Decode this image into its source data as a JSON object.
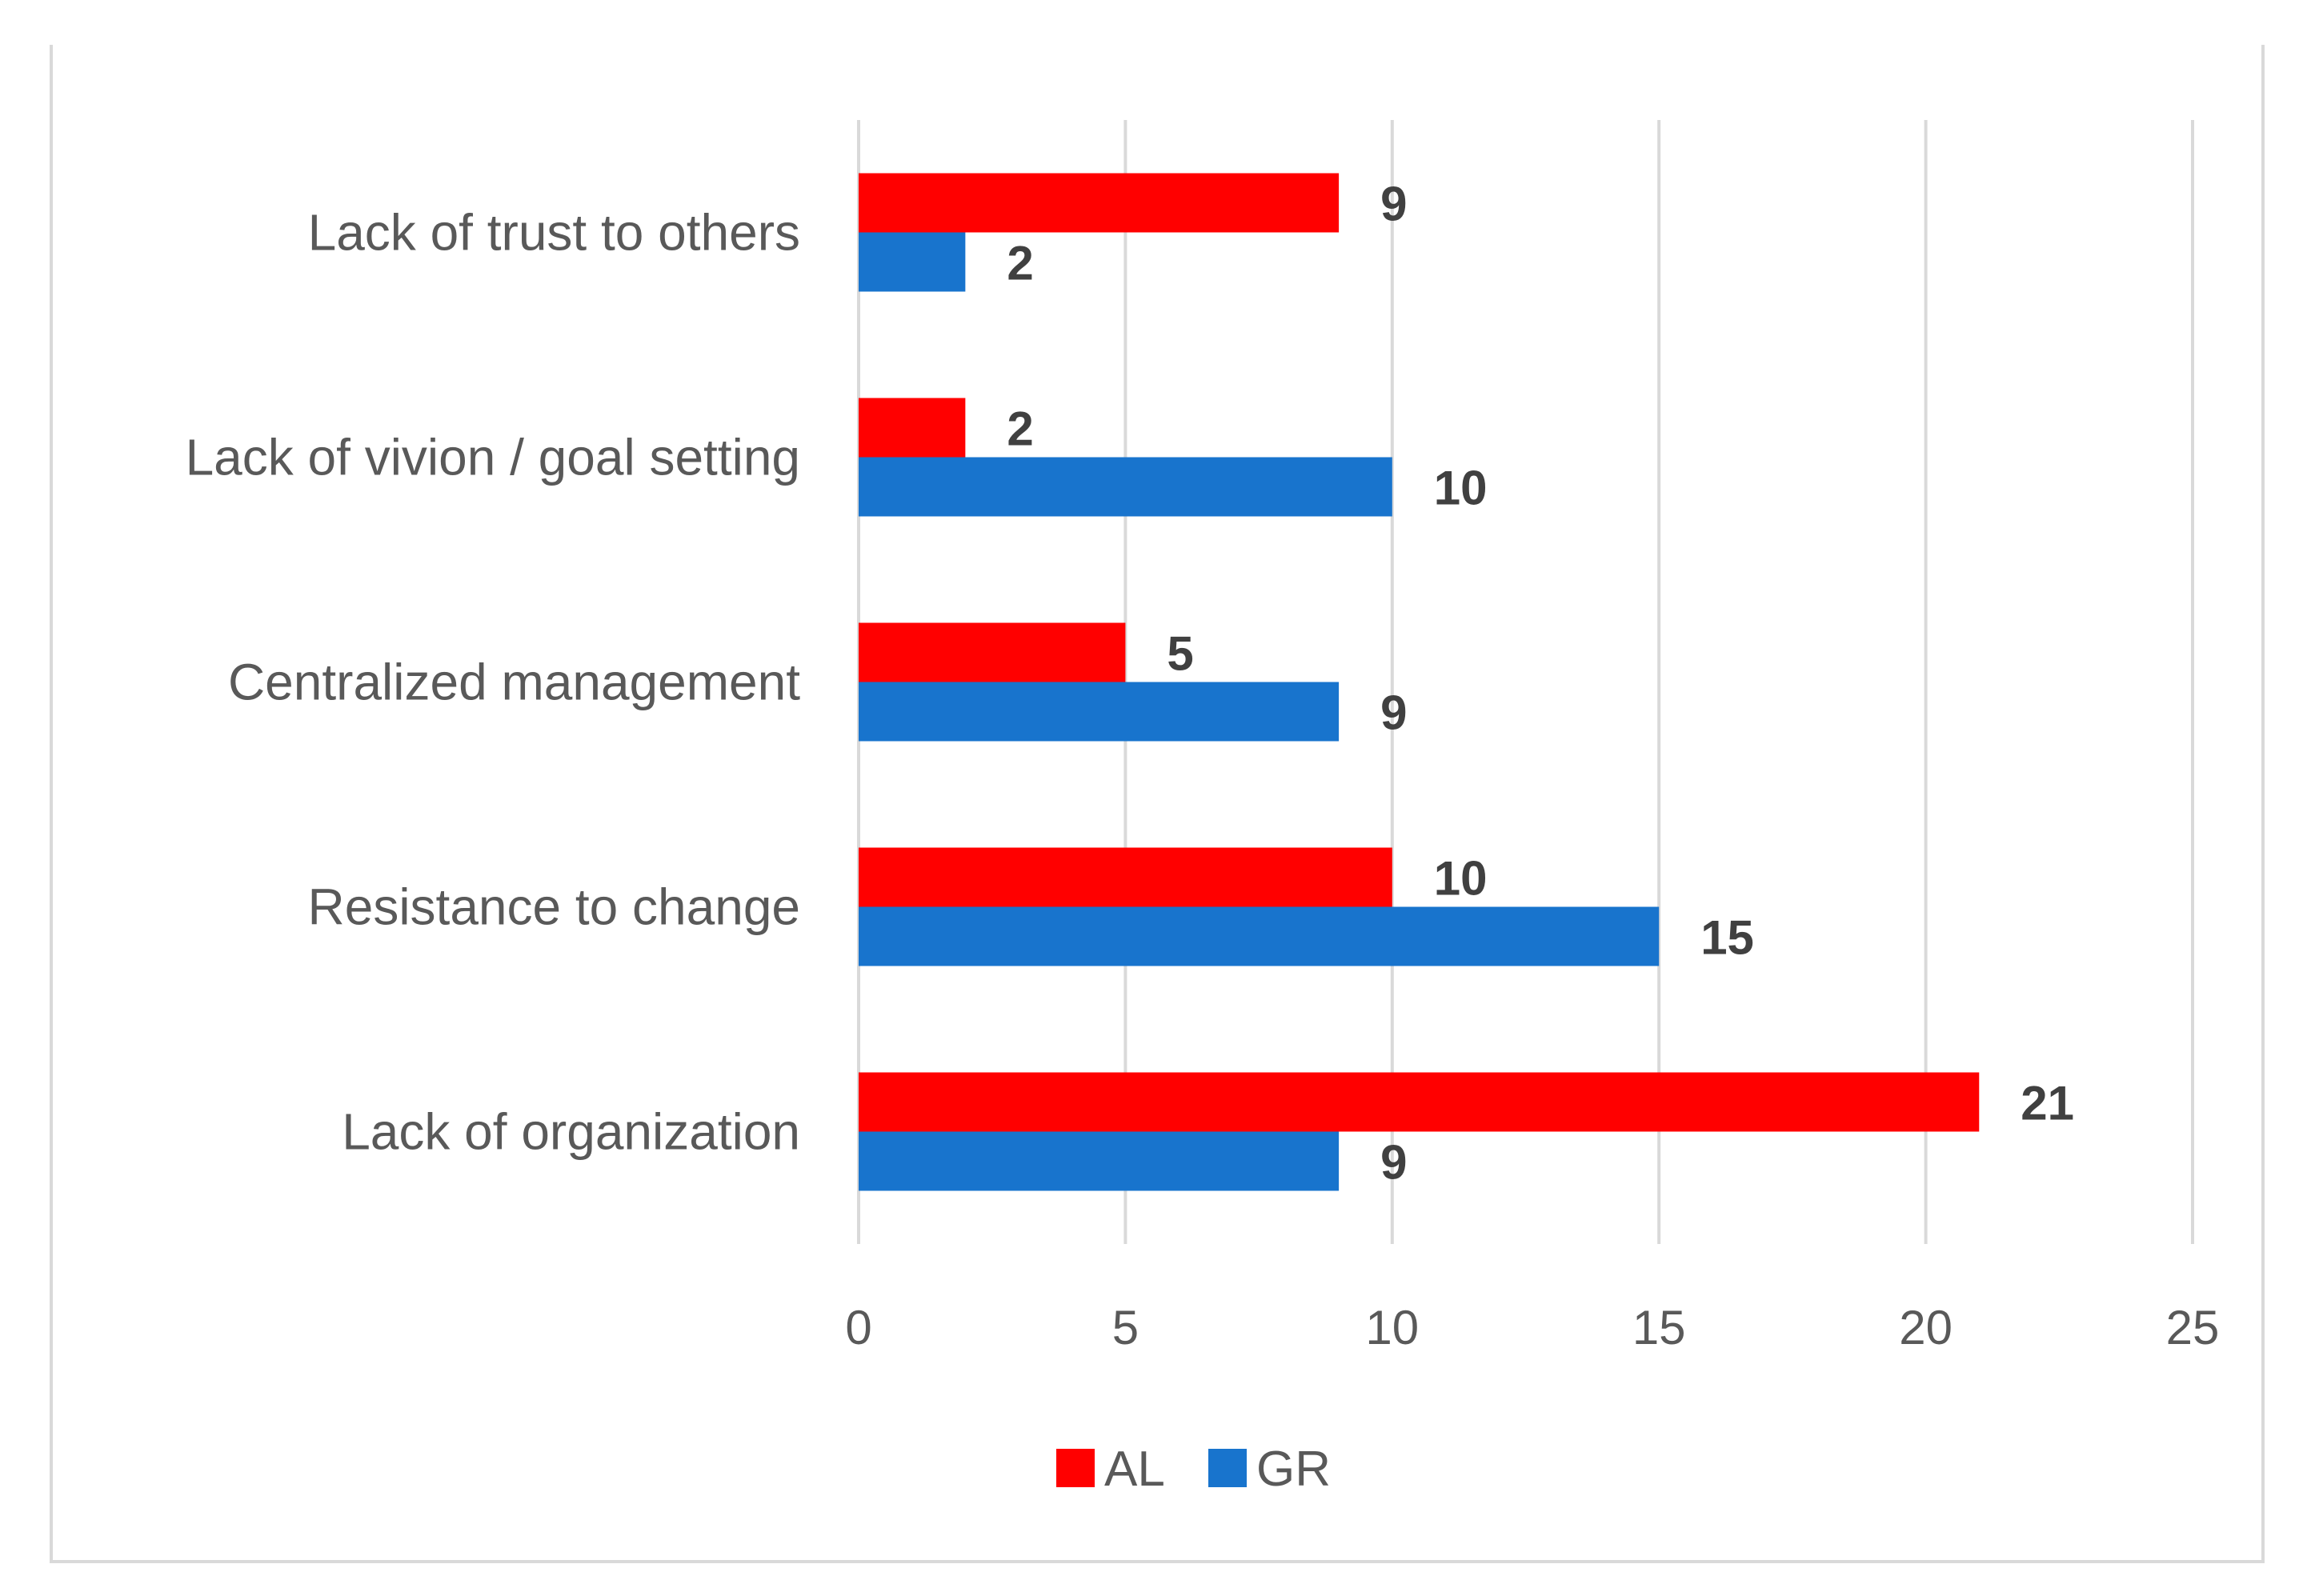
{
  "chart_data": {
    "type": "bar",
    "orientation": "horizontal",
    "categories": [
      "Lack of trust to others",
      "Lack of vivion / goal setting",
      "Centralized management",
      "Resistance to change",
      "Lack of organization"
    ],
    "series": [
      {
        "name": "AL",
        "color": "#ff0000",
        "values": [
          9,
          2,
          5,
          10,
          21
        ]
      },
      {
        "name": "GR",
        "color": "#1874cd",
        "values": [
          2,
          10,
          9,
          15,
          9
        ]
      }
    ],
    "xlim": [
      0,
      25
    ],
    "x_ticks": [
      0,
      5,
      10,
      15,
      20,
      25
    ],
    "grid": true,
    "legend_position": "bottom",
    "data_labels": true
  }
}
